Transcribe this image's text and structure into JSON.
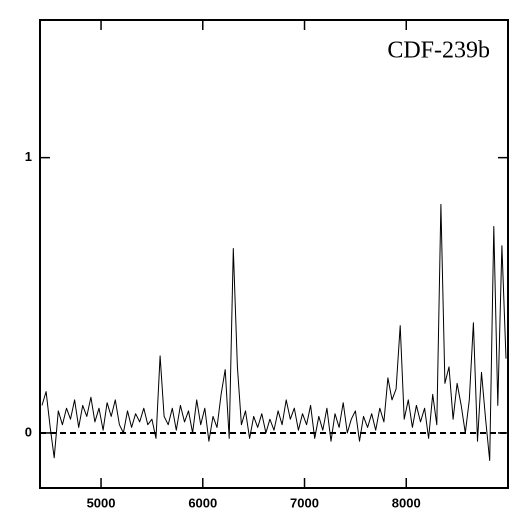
{
  "chart_data": {
    "type": "line",
    "annotation": "CDF-239b",
    "x": [
      4420,
      4460,
      4500,
      4540,
      4580,
      4620,
      4660,
      4700,
      4740,
      4780,
      4820,
      4860,
      4900,
      4940,
      4980,
      5020,
      5060,
      5100,
      5140,
      5180,
      5220,
      5260,
      5300,
      5340,
      5380,
      5420,
      5460,
      5500,
      5540,
      5580,
      5620,
      5660,
      5700,
      5740,
      5780,
      5820,
      5860,
      5900,
      5940,
      5980,
      6020,
      6060,
      6100,
      6140,
      6180,
      6220,
      6260,
      6300,
      6340,
      6380,
      6420,
      6460,
      6500,
      6540,
      6580,
      6620,
      6660,
      6700,
      6740,
      6780,
      6820,
      6860,
      6900,
      6940,
      6980,
      7020,
      7060,
      7100,
      7140,
      7180,
      7220,
      7260,
      7300,
      7340,
      7380,
      7420,
      7460,
      7500,
      7540,
      7580,
      7620,
      7660,
      7700,
      7740,
      7780,
      7820,
      7860,
      7900,
      7940,
      7980,
      8020,
      8060,
      8100,
      8140,
      8180,
      8220,
      8260,
      8300,
      8340,
      8380,
      8420,
      8460,
      8500,
      8540,
      8580,
      8620,
      8660,
      8700,
      8740,
      8780,
      8820,
      8860,
      8900,
      8940,
      8980
    ],
    "series": [
      {
        "color": "#000000",
        "values": [
          0.1,
          0.15,
          0.02,
          -0.09,
          0.08,
          0.03,
          0.09,
          0.05,
          0.12,
          0.02,
          0.1,
          0.06,
          0.13,
          0.04,
          0.09,
          0.01,
          0.11,
          0.06,
          0.12,
          0.03,
          0.0,
          0.08,
          0.02,
          0.07,
          0.04,
          0.09,
          0.03,
          0.05,
          -0.02,
          0.28,
          0.06,
          0.03,
          0.09,
          0.01,
          0.1,
          0.04,
          0.08,
          0.0,
          0.12,
          0.03,
          0.09,
          -0.03,
          0.06,
          0.02,
          0.14,
          0.23,
          -0.02,
          0.67,
          0.24,
          0.03,
          0.08,
          -0.02,
          0.06,
          0.02,
          0.07,
          0.0,
          0.05,
          0.01,
          0.08,
          0.03,
          0.12,
          0.05,
          0.09,
          0.01,
          0.07,
          0.03,
          0.1,
          -0.02,
          0.06,
          0.01,
          0.09,
          -0.03,
          0.07,
          0.02,
          0.11,
          0.0,
          0.05,
          0.08,
          -0.03,
          0.06,
          0.02,
          0.07,
          0.01,
          0.09,
          0.04,
          0.2,
          0.12,
          0.16,
          0.39,
          0.05,
          0.12,
          0.02,
          0.1,
          0.04,
          0.09,
          -0.02,
          0.14,
          0.03,
          0.83,
          0.18,
          0.24,
          0.05,
          0.18,
          0.1,
          0.0,
          0.12,
          0.4,
          -0.03,
          0.22,
          0.05,
          -0.1,
          0.75,
          0.1,
          0.68,
          0.27
        ]
      }
    ],
    "reference_line": 0,
    "xlim": [
      4400,
      9000
    ],
    "ylim": [
      -0.2,
      1.5
    ],
    "xticks": [
      5000,
      6000,
      7000,
      8000
    ],
    "yticks": [
      0,
      1
    ]
  }
}
